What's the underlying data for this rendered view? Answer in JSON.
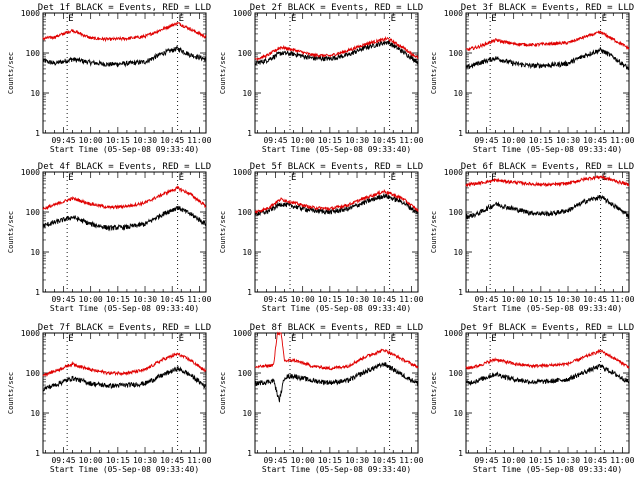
{
  "chart_data": {
    "type": "line",
    "layout": "3x3 grid",
    "y_scale": "log",
    "ylim": [
      1,
      1000
    ],
    "yticks": [
      1,
      10,
      100,
      1000
    ],
    "ytick_labels": [
      "1",
      "10",
      "100",
      "1000"
    ],
    "ylabel": "Counts/sec",
    "xlabel": "Start Time (05-Sep-08 09:33:40)",
    "xlim_minutes_after_0930": [
      3.67,
      93.67
    ],
    "xticks": [
      "09:45",
      "10:00",
      "10:15",
      "10:30",
      "10:45",
      "11:00"
    ],
    "marker_label": "E",
    "series_colors": {
      "events": "#000000",
      "lld": "#e00000"
    },
    "panels": [
      {
        "title": "Det 1f BLACK = Events, RED = LLD",
        "markers": [
          "09:47",
          "10:48"
        ],
        "events": [
          [
            3.67,
            65
          ],
          [
            10,
            55
          ],
          [
            20,
            70
          ],
          [
            30,
            58
          ],
          [
            40,
            52
          ],
          [
            50,
            55
          ],
          [
            60,
            60
          ],
          [
            70,
            100
          ],
          [
            78,
            130
          ],
          [
            85,
            90
          ],
          [
            93.67,
            70
          ]
        ],
        "lld": [
          [
            3.67,
            230
          ],
          [
            10,
            250
          ],
          [
            20,
            370
          ],
          [
            30,
            235
          ],
          [
            40,
            220
          ],
          [
            50,
            230
          ],
          [
            60,
            260
          ],
          [
            70,
            400
          ],
          [
            78,
            560
          ],
          [
            85,
            400
          ],
          [
            93.67,
            250
          ]
        ]
      },
      {
        "title": "Det 2f BLACK = Events, RED = LLD",
        "markers": [
          "09:53",
          "10:48"
        ],
        "events": [
          [
            3.67,
            55
          ],
          [
            10,
            65
          ],
          [
            18,
            100
          ],
          [
            25,
            95
          ],
          [
            35,
            75
          ],
          [
            45,
            72
          ],
          [
            55,
            90
          ],
          [
            65,
            140
          ],
          [
            77,
            190
          ],
          [
            85,
            110
          ],
          [
            93.67,
            60
          ]
        ],
        "lld": [
          [
            3.67,
            70
          ],
          [
            10,
            85
          ],
          [
            18,
            140
          ],
          [
            25,
            120
          ],
          [
            35,
            90
          ],
          [
            45,
            85
          ],
          [
            55,
            115
          ],
          [
            65,
            170
          ],
          [
            77,
            230
          ],
          [
            85,
            140
          ],
          [
            93.67,
            75
          ]
        ]
      },
      {
        "title": "Det 3f BLACK = Events, RED = LLD",
        "markers": [
          "09:47",
          "10:48"
        ],
        "events": [
          [
            3.67,
            42
          ],
          [
            10,
            55
          ],
          [
            20,
            75
          ],
          [
            30,
            55
          ],
          [
            40,
            48
          ],
          [
            50,
            50
          ],
          [
            60,
            55
          ],
          [
            70,
            90
          ],
          [
            78,
            120
          ],
          [
            85,
            80
          ],
          [
            93.67,
            40
          ]
        ],
        "lld": [
          [
            3.67,
            120
          ],
          [
            10,
            140
          ],
          [
            20,
            210
          ],
          [
            30,
            170
          ],
          [
            40,
            160
          ],
          [
            50,
            170
          ],
          [
            60,
            180
          ],
          [
            70,
            260
          ],
          [
            78,
            330
          ],
          [
            85,
            220
          ],
          [
            93.67,
            130
          ]
        ]
      },
      {
        "title": "Det 4f BLACK = Events, RED = LLD",
        "markers": [
          "09:47",
          "10:48"
        ],
        "events": [
          [
            3.67,
            45
          ],
          [
            10,
            55
          ],
          [
            20,
            75
          ],
          [
            30,
            50
          ],
          [
            40,
            40
          ],
          [
            50,
            42
          ],
          [
            60,
            50
          ],
          [
            70,
            90
          ],
          [
            78,
            130
          ],
          [
            85,
            90
          ],
          [
            93.67,
            50
          ]
        ],
        "lld": [
          [
            3.67,
            120
          ],
          [
            10,
            150
          ],
          [
            20,
            220
          ],
          [
            30,
            160
          ],
          [
            40,
            130
          ],
          [
            50,
            140
          ],
          [
            60,
            170
          ],
          [
            70,
            280
          ],
          [
            78,
            400
          ],
          [
            85,
            280
          ],
          [
            93.67,
            140
          ]
        ]
      },
      {
        "title": "Det 5f BLACK = Events, RED = LLD",
        "markers": [
          "09:53",
          "10:48"
        ],
        "events": [
          [
            3.67,
            90
          ],
          [
            10,
            100
          ],
          [
            18,
            160
          ],
          [
            25,
            140
          ],
          [
            35,
            110
          ],
          [
            45,
            100
          ],
          [
            55,
            120
          ],
          [
            65,
            180
          ],
          [
            75,
            260
          ],
          [
            85,
            180
          ],
          [
            93.67,
            95
          ]
        ],
        "lld": [
          [
            3.67,
            100
          ],
          [
            10,
            120
          ],
          [
            18,
            210
          ],
          [
            25,
            170
          ],
          [
            35,
            130
          ],
          [
            45,
            120
          ],
          [
            55,
            150
          ],
          [
            65,
            230
          ],
          [
            75,
            330
          ],
          [
            85,
            220
          ],
          [
            93.67,
            110
          ]
        ]
      },
      {
        "title": "Det 6f BLACK = Events, RED = LLD",
        "markers": [
          "09:47",
          "10:48"
        ],
        "events": [
          [
            3.67,
            75
          ],
          [
            10,
            90
          ],
          [
            20,
            160
          ],
          [
            30,
            120
          ],
          [
            40,
            95
          ],
          [
            50,
            90
          ],
          [
            60,
            110
          ],
          [
            70,
            190
          ],
          [
            78,
            240
          ],
          [
            85,
            150
          ],
          [
            93.67,
            80
          ]
        ],
        "lld": [
          [
            3.67,
            480
          ],
          [
            10,
            520
          ],
          [
            20,
            620
          ],
          [
            30,
            560
          ],
          [
            40,
            500
          ],
          [
            50,
            480
          ],
          [
            60,
            520
          ],
          [
            70,
            680
          ],
          [
            78,
            760
          ],
          [
            85,
            620
          ],
          [
            93.67,
            480
          ]
        ]
      },
      {
        "title": "Det 7f BLACK = Events, RED = LLD",
        "markers": [
          "09:47",
          "10:48"
        ],
        "events": [
          [
            3.67,
            40
          ],
          [
            10,
            50
          ],
          [
            20,
            75
          ],
          [
            30,
            55
          ],
          [
            40,
            48
          ],
          [
            50,
            50
          ],
          [
            60,
            55
          ],
          [
            70,
            90
          ],
          [
            78,
            130
          ],
          [
            85,
            90
          ],
          [
            93.67,
            45
          ]
        ],
        "lld": [
          [
            3.67,
            90
          ],
          [
            10,
            110
          ],
          [
            20,
            170
          ],
          [
            30,
            120
          ],
          [
            40,
            100
          ],
          [
            50,
            100
          ],
          [
            60,
            120
          ],
          [
            70,
            220
          ],
          [
            78,
            300
          ],
          [
            85,
            210
          ],
          [
            93.67,
            110
          ]
        ]
      },
      {
        "title": "Det 8f BLACK = Events, RED = LLD",
        "markers": [
          "09:53",
          "10:48"
        ],
        "events": [
          [
            3.67,
            55
          ],
          [
            10,
            60
          ],
          [
            14,
            65
          ],
          [
            17,
            20
          ],
          [
            20,
            80
          ],
          [
            25,
            85
          ],
          [
            35,
            65
          ],
          [
            45,
            58
          ],
          [
            55,
            65
          ],
          [
            65,
            110
          ],
          [
            75,
            170
          ],
          [
            85,
            90
          ],
          [
            93.67,
            55
          ]
        ],
        "lld": [
          [
            3.67,
            140
          ],
          [
            10,
            150
          ],
          [
            14,
            160
          ],
          [
            16,
            1000
          ],
          [
            18,
            1000
          ],
          [
            20,
            200
          ],
          [
            25,
            210
          ],
          [
            35,
            150
          ],
          [
            45,
            130
          ],
          [
            55,
            150
          ],
          [
            65,
            260
          ],
          [
            75,
            380
          ],
          [
            85,
            220
          ],
          [
            93.67,
            140
          ]
        ]
      },
      {
        "title": "Det 9f BLACK = Events, RED = LLD",
        "markers": [
          "09:47",
          "10:48"
        ],
        "events": [
          [
            3.67,
            55
          ],
          [
            10,
            65
          ],
          [
            20,
            95
          ],
          [
            30,
            70
          ],
          [
            40,
            60
          ],
          [
            50,
            62
          ],
          [
            60,
            70
          ],
          [
            70,
            110
          ],
          [
            78,
            150
          ],
          [
            85,
            100
          ],
          [
            93.67,
            60
          ]
        ],
        "lld": [
          [
            3.67,
            130
          ],
          [
            10,
            150
          ],
          [
            20,
            220
          ],
          [
            30,
            170
          ],
          [
            40,
            150
          ],
          [
            50,
            155
          ],
          [
            60,
            170
          ],
          [
            70,
            260
          ],
          [
            78,
            360
          ],
          [
            85,
            240
          ],
          [
            93.67,
            140
          ]
        ]
      }
    ]
  }
}
